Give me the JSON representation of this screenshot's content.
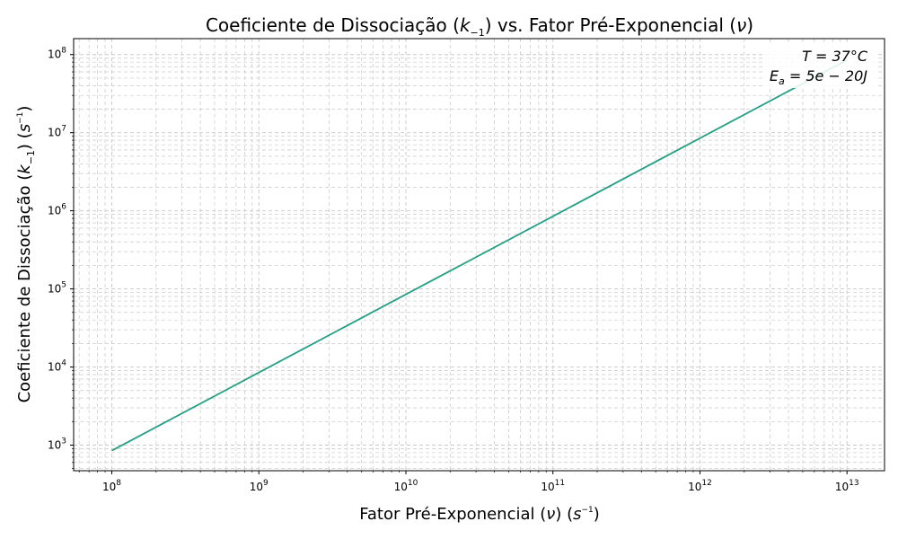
{
  "chart_data": {
    "type": "line",
    "title": {
      "prefix": "Coeficiente de Dissociação (",
      "k_sym": "k",
      "k_sub": "−1",
      "middle": ") vs. Fator Pré-Exponencial (",
      "nu_sym": "ν",
      "suffix": ")"
    },
    "xlabel": {
      "prefix": "Fator Pré-Exponencial (",
      "nu_sym": "ν",
      "mid": ") (",
      "unit": "s",
      "unit_exp": "−1",
      "suffix": ")"
    },
    "ylabel": {
      "prefix": "Coeficiente de Dissociação (",
      "k_sym": "k",
      "k_sub": "−1",
      "mid": ") (",
      "unit": "s",
      "unit_exp": "−1",
      "suffix": ")"
    },
    "x_scale": "log",
    "y_scale": "log",
    "xlim": [
      55000000.0,
      18000000000000.0
    ],
    "ylim": [
      470,
      160000000.0
    ],
    "x_ticks": [
      {
        "base": "10",
        "exp": "8",
        "value": 100000000.0
      },
      {
        "base": "10",
        "exp": "9",
        "value": 1000000000.0
      },
      {
        "base": "10",
        "exp": "10",
        "value": 10000000000.0
      },
      {
        "base": "10",
        "exp": "11",
        "value": 100000000000.0
      },
      {
        "base": "10",
        "exp": "12",
        "value": 1000000000000.0
      },
      {
        "base": "10",
        "exp": "13",
        "value": 10000000000000.0
      }
    ],
    "y_ticks": [
      {
        "base": "10",
        "exp": "3",
        "value": 1000.0
      },
      {
        "base": "10",
        "exp": "4",
        "value": 10000.0
      },
      {
        "base": "10",
        "exp": "5",
        "value": 100000.0
      },
      {
        "base": "10",
        "exp": "6",
        "value": 1000000.0
      },
      {
        "base": "10",
        "exp": "7",
        "value": 10000000.0
      },
      {
        "base": "10",
        "exp": "8",
        "value": 100000000.0
      }
    ],
    "grid": true,
    "grid_style": "dashed, major and minor",
    "series": [
      {
        "color": "#26a085",
        "x": [
          100000000.0,
          1000000000.0,
          10000000000.0,
          100000000000.0,
          1000000000000.0,
          10000000000000.0
        ],
        "y": [
          850,
          8500,
          85000,
          850000,
          8500000,
          85000000
        ]
      }
    ],
    "annotations": {
      "line1": {
        "lhs": "T",
        "rhs": "37°C"
      },
      "line2": {
        "lhs": "E",
        "lhs_sub": "a",
        "rhs": "5e − 20J"
      },
      "placement": "top-right"
    }
  }
}
